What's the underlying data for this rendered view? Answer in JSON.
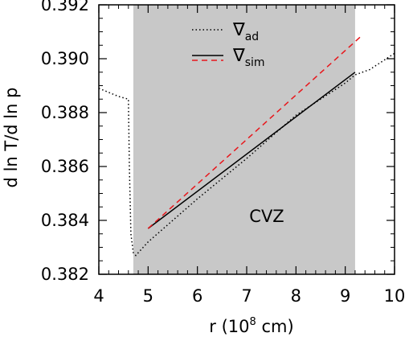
{
  "chart_data": {
    "type": "line",
    "xlabel_main": "r (10",
    "xlabel_sup": "8",
    "xlabel_tail": " cm)",
    "ylabel": "d ln T/d ln p",
    "xlim": [
      4,
      10
    ],
    "ylim": [
      0.382,
      0.392
    ],
    "x_ticks": [
      4,
      5,
      6,
      7,
      8,
      9,
      10
    ],
    "x_tick_labels": [
      "4",
      "5",
      "6",
      "7",
      "8",
      "9",
      "10"
    ],
    "y_ticks": [
      0.382,
      0.384,
      0.386,
      0.388,
      0.39,
      0.392
    ],
    "y_tick_labels": [
      "0.382",
      "0.384",
      "0.386",
      "0.388",
      "0.390",
      "0.392"
    ],
    "shaded_region": {
      "x": [
        4.7,
        9.2
      ],
      "color": "#c8c8c8",
      "label": "CVZ"
    },
    "series": [
      {
        "name_symbol": "∇",
        "name_sub": "ad",
        "style": "dotted",
        "color": "#000000",
        "x": [
          4.0,
          4.4,
          4.6,
          4.62,
          4.65,
          4.7,
          4.75,
          5.0,
          6.0,
          7.0,
          8.0,
          9.0,
          9.2,
          9.5,
          10.0
        ],
        "y": [
          0.3889,
          0.3886,
          0.3885,
          0.386,
          0.3835,
          0.3828,
          0.3827,
          0.3832,
          0.3848,
          0.3863,
          0.3879,
          0.3891,
          0.3894,
          0.3896,
          0.3902
        ]
      },
      {
        "name_symbol": "∇",
        "name_sub": "sim",
        "style": "solid",
        "color": "#000000",
        "x": [
          5.0,
          9.2
        ],
        "y": [
          0.3837,
          0.3895
        ]
      },
      {
        "style": "dashed",
        "color": "#e8161b",
        "x": [
          5.0,
          9.3
        ],
        "y": [
          0.3837,
          0.3908
        ]
      }
    ],
    "legend_position": "top",
    "grid": false
  }
}
